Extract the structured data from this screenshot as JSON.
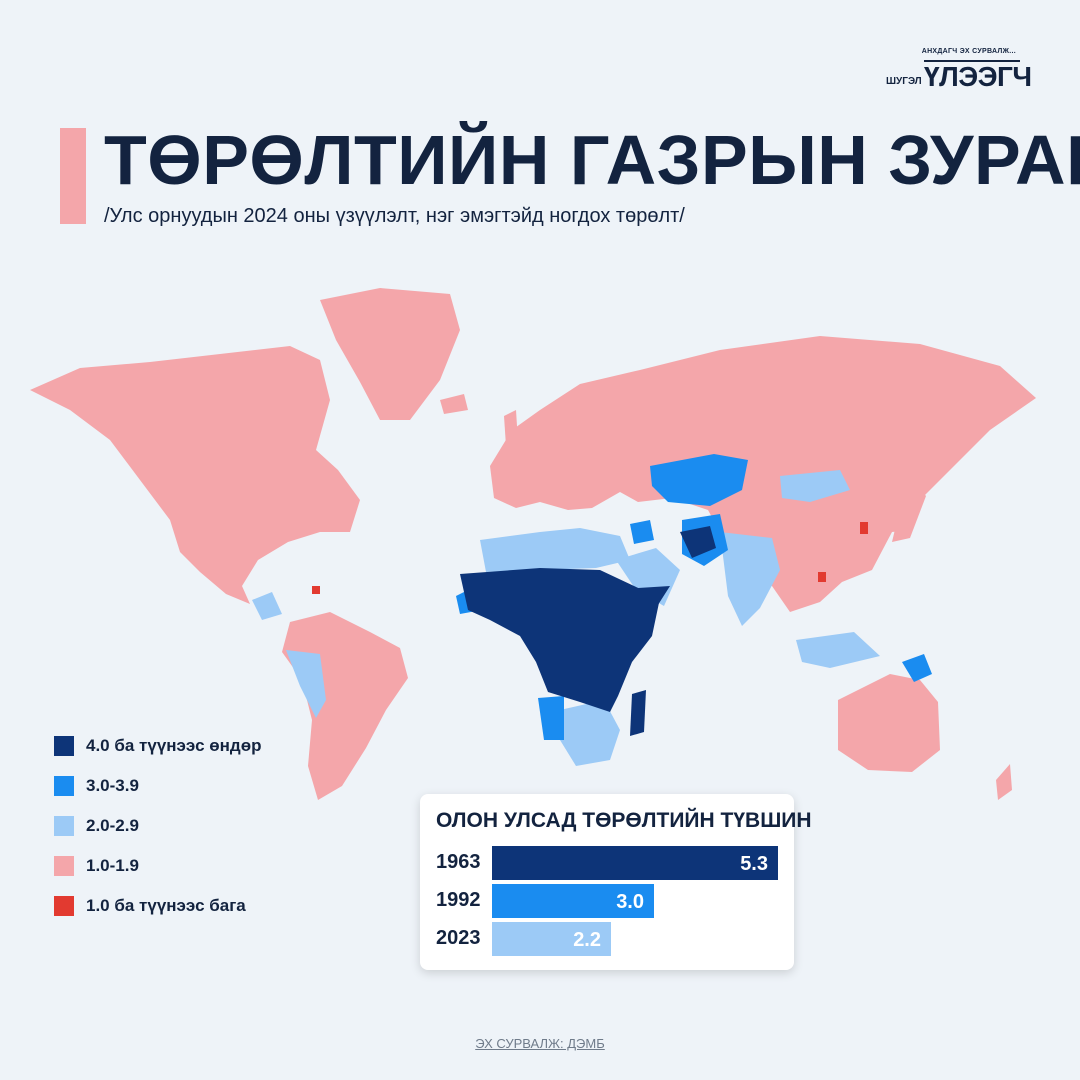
{
  "logo": {
    "tagline": "АНХДАГЧ ЭХ СУРВАЛЖ...",
    "small": "ШУГЭЛ",
    "big": "ҮЛЭЭГЧ"
  },
  "title": "ТӨРӨЛТИЙН ГАЗРЫН ЗУРАГ",
  "subtitle": "/Улс орнуудын 2024 оны үзүүлэлт, нэг эмэгтэйд ногдох төрөлт/",
  "colors": {
    "very_high": "#0d3478",
    "high": "#1a8cf0",
    "medium": "#9ccaf6",
    "low": "#f4a6aa",
    "very_low": "#e23a30",
    "background": "#eef3f8"
  },
  "legend": [
    {
      "label": "4.0 ба түүнээс өндөр",
      "color": "#0d3478"
    },
    {
      "label": "3.0-3.9",
      "color": "#1a8cf0"
    },
    {
      "label": "2.0-2.9",
      "color": "#9ccaf6"
    },
    {
      "label": "1.0-1.9",
      "color": "#f4a6aa"
    },
    {
      "label": "1.0 ба түүнээс бага",
      "color": "#e23a30"
    }
  ],
  "chart_data": {
    "type": "bar",
    "title": "ОЛОН УЛСАД ТӨРӨЛТИЙН ТҮВШИН",
    "categories": [
      "1963",
      "1992",
      "2023"
    ],
    "values": [
      5.3,
      3.0,
      2.2
    ],
    "value_labels": [
      "5.3",
      "3.0",
      "2.2"
    ],
    "colors": [
      "#0d3478",
      "#1a8cf0",
      "#9ccaf6"
    ],
    "xlim": [
      0,
      5.3
    ],
    "orientation": "horizontal"
  },
  "source": "ЭХ СУРВАЛЖ: ДЭМБ"
}
